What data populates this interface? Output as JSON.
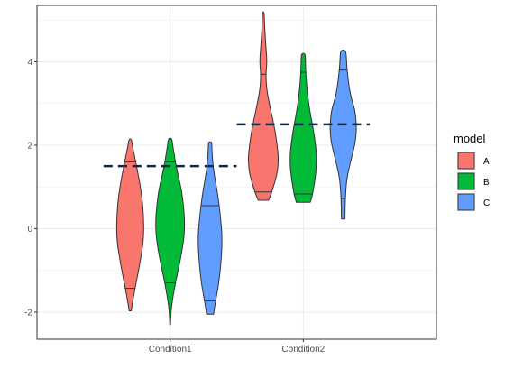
{
  "chart_data": {
    "type": "violin",
    "categories": [
      "Condition1",
      "Condition2"
    ],
    "ylim": [
      -2.65,
      5.35
    ],
    "yticks": [
      -2,
      0,
      2,
      4
    ],
    "grid": true,
    "legend": {
      "title": "model",
      "placement": "right"
    },
    "series": [
      {
        "name": "A",
        "color": "#F8766D"
      },
      {
        "name": "B",
        "color": "#00BA38"
      },
      {
        "name": "C",
        "color": "#619CFF"
      }
    ],
    "violins": [
      {
        "category": "Condition1",
        "model": "A",
        "min": -1.97,
        "max": 2.15,
        "quantiles": [
          -1.43,
          1.6
        ],
        "profile": [
          [
            -1.97,
            0.06
          ],
          [
            -1.8,
            0.12
          ],
          [
            -1.43,
            0.28
          ],
          [
            -0.8,
            0.58
          ],
          [
            -0.2,
            0.8
          ],
          [
            0.5,
            0.75
          ],
          [
            1.0,
            0.6
          ],
          [
            1.6,
            0.32
          ],
          [
            2.0,
            0.12
          ],
          [
            2.15,
            0.08
          ]
        ]
      },
      {
        "category": "Condition1",
        "model": "B",
        "min": -2.3,
        "max": 2.17,
        "quantiles": [
          -1.3,
          1.6
        ],
        "profile": [
          [
            -2.3,
            0.02
          ],
          [
            -1.9,
            0.06
          ],
          [
            -1.3,
            0.3
          ],
          [
            -0.7,
            0.62
          ],
          [
            0.0,
            0.88
          ],
          [
            0.8,
            0.72
          ],
          [
            1.3,
            0.45
          ],
          [
            1.6,
            0.3
          ],
          [
            2.0,
            0.15
          ],
          [
            2.17,
            0.1
          ]
        ]
      },
      {
        "category": "Condition1",
        "model": "C",
        "min": -2.05,
        "max": 2.08,
        "quantiles": [
          -1.73,
          0.55
        ],
        "profile": [
          [
            -2.05,
            0.2
          ],
          [
            -1.73,
            0.32
          ],
          [
            -1.2,
            0.55
          ],
          [
            -0.3,
            0.72
          ],
          [
            0.3,
            0.6
          ],
          [
            0.8,
            0.45
          ],
          [
            1.2,
            0.28
          ],
          [
            1.6,
            0.14
          ],
          [
            2.0,
            0.1
          ],
          [
            2.08,
            0.09
          ]
        ]
      },
      {
        "category": "Condition2",
        "model": "A",
        "min": 0.68,
        "max": 5.2,
        "quantiles": [
          0.88,
          3.7
        ],
        "profile": [
          [
            0.68,
            0.3
          ],
          [
            0.88,
            0.5
          ],
          [
            1.5,
            0.92
          ],
          [
            2.2,
            0.75
          ],
          [
            2.8,
            0.45
          ],
          [
            3.3,
            0.2
          ],
          [
            3.7,
            0.14
          ],
          [
            4.0,
            0.22
          ],
          [
            4.5,
            0.12
          ],
          [
            5.0,
            0.06
          ],
          [
            5.2,
            0.05
          ]
        ]
      },
      {
        "category": "Condition2",
        "model": "B",
        "min": 0.63,
        "max": 4.2,
        "quantiles": [
          0.83,
          3.75
        ],
        "profile": [
          [
            0.63,
            0.4
          ],
          [
            0.83,
            0.55
          ],
          [
            1.6,
            0.82
          ],
          [
            2.3,
            0.62
          ],
          [
            2.8,
            0.38
          ],
          [
            3.3,
            0.22
          ],
          [
            3.75,
            0.14
          ],
          [
            4.1,
            0.12
          ],
          [
            4.2,
            0.1
          ]
        ]
      },
      {
        "category": "Condition2",
        "model": "C",
        "min": 0.23,
        "max": 4.28,
        "quantiles": [
          0.72,
          3.8
        ],
        "profile": [
          [
            0.23,
            0.1
          ],
          [
            0.72,
            0.12
          ],
          [
            1.2,
            0.2
          ],
          [
            1.6,
            0.42
          ],
          [
            2.2,
            0.78
          ],
          [
            2.8,
            0.72
          ],
          [
            3.2,
            0.4
          ],
          [
            3.8,
            0.22
          ],
          [
            4.1,
            0.18
          ],
          [
            4.28,
            0.15
          ]
        ]
      }
    ],
    "reference_lines": [
      {
        "category": "Condition1",
        "y": 1.5,
        "color": "#0d2a45"
      },
      {
        "category": "Condition2",
        "y": 2.5,
        "color": "#0d2a45"
      }
    ]
  }
}
